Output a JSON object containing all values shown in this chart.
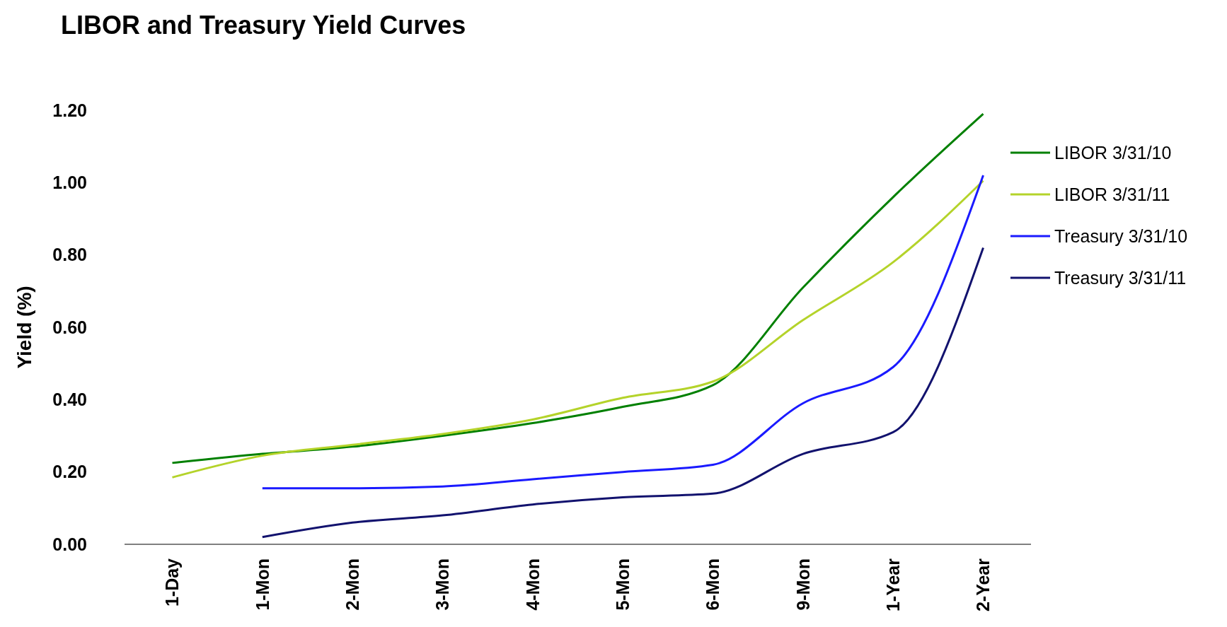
{
  "chart_data": {
    "type": "line",
    "title": "LIBOR and Treasury Yield Curves",
    "ylabel": "Yield (%)",
    "categories": [
      "1-Day",
      "1-Mon",
      "2-Mon",
      "3-Mon",
      "4-Mon",
      "5-Mon",
      "6-Mon",
      "9-Mon",
      "1-Year",
      "2-Year"
    ],
    "series": [
      {
        "name": "LIBOR 3/31/10",
        "color": "#008000",
        "values": [
          0.225,
          0.25,
          0.27,
          0.3,
          0.335,
          0.38,
          0.44,
          0.71,
          0.96,
          1.19
        ]
      },
      {
        "name": "LIBOR 3/31/11",
        "color": "#b4d32a",
        "values": [
          0.185,
          0.245,
          0.275,
          0.305,
          0.345,
          0.405,
          0.45,
          0.62,
          0.78,
          1.005
        ]
      },
      {
        "name": "Treasury 3/31/10",
        "color": "#1a1aff",
        "values": [
          null,
          0.155,
          0.155,
          0.16,
          0.18,
          0.2,
          0.22,
          0.39,
          0.49,
          1.02
        ]
      },
      {
        "name": "Treasury 3/31/11",
        "color": "#12126e",
        "values": [
          null,
          0.02,
          0.06,
          0.08,
          0.11,
          0.13,
          0.14,
          0.25,
          0.31,
          0.82
        ]
      }
    ],
    "ylim": [
      0,
      1.2
    ],
    "yticks": [
      {
        "value": 0,
        "label": "0.00"
      },
      {
        "value": 0.2,
        "label": "0.20"
      },
      {
        "value": 0.4,
        "label": "0.40"
      },
      {
        "value": 0.6,
        "label": "0.60"
      },
      {
        "value": 0.8,
        "label": "0.80"
      },
      {
        "value": 1,
        "label": "1.00"
      },
      {
        "value": 1.2,
        "label": "1.20"
      }
    ],
    "grid": false,
    "legend": "right",
    "marker": "none",
    "line_style": "solid"
  }
}
